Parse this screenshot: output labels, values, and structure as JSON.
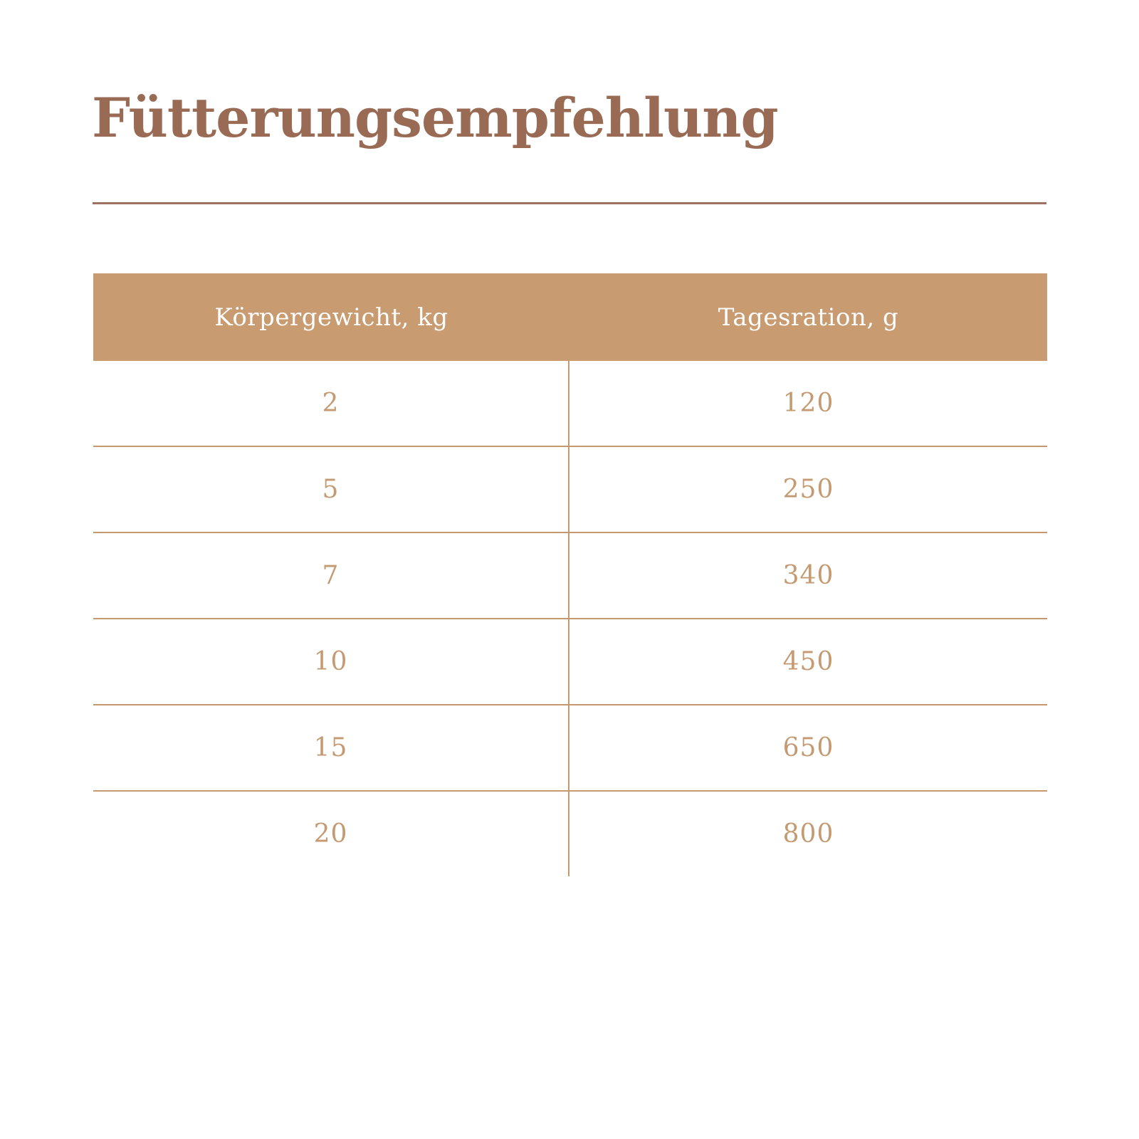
{
  "title": "Fütterungsempfehlung",
  "colors": {
    "title_brown": "#996b54",
    "rule_brown": "#9d7261",
    "header_bg_tan": "#c89b71",
    "header_text": "#ffffff",
    "cell_text_tan": "#c49a72",
    "divider_tan": "#c5986e",
    "background": "#ffffff"
  },
  "table": {
    "columns": [
      "Körpergewicht, kg",
      "Tagesration, g"
    ],
    "rows": [
      [
        "2",
        "120"
      ],
      [
        "5",
        "250"
      ],
      [
        "7",
        "340"
      ],
      [
        "10",
        "450"
      ],
      [
        "15",
        "650"
      ],
      [
        "20",
        "800"
      ]
    ]
  }
}
